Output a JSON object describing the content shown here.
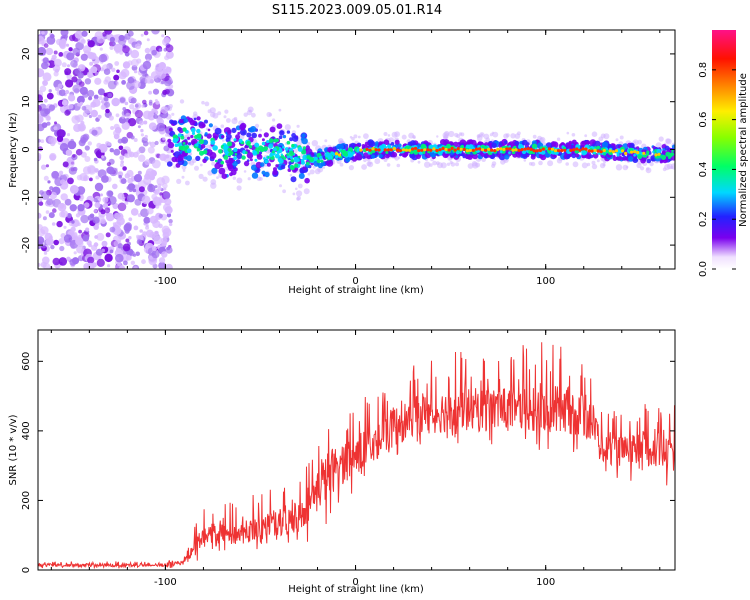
{
  "figure": {
    "title": "S115.2023.009.05.01.R14"
  },
  "chart_data": [
    {
      "type": "heatmap",
      "xlabel": "Height of straight line (km)",
      "ylabel": "Frequency (Hz)",
      "xlim": [
        -167,
        168
      ],
      "ylim": [
        -25,
        25
      ],
      "xticks": [
        -100,
        0,
        100
      ],
      "yticks": [
        -20,
        -10,
        0,
        10,
        20
      ],
      "colorbar": {
        "label": "Normalized spectral amplitude",
        "range": [
          0,
          0.96
        ],
        "ticks": [
          0.0,
          0.2,
          0.4,
          0.6,
          0.8
        ]
      },
      "ridge": {
        "x": [
          -100,
          -90,
          -80,
          -70,
          -60,
          -50,
          -40,
          -30,
          -20,
          -10,
          0,
          10,
          20,
          40,
          60,
          80,
          100,
          120,
          140,
          150,
          160,
          168
        ],
        "y": [
          0.5,
          2.0,
          1.5,
          -1.0,
          0.5,
          -1.0,
          0.0,
          -2.0,
          -2.0,
          -1.0,
          -0.5,
          0.0,
          0.0,
          0.0,
          0.0,
          0.0,
          0.0,
          0.0,
          -0.5,
          -0.8,
          -1.0,
          -1.0
        ]
      },
      "grid": false
    },
    {
      "type": "line",
      "xlabel": "Height of straight line (km)",
      "ylabel": "SNR (10 * v/v)",
      "xlim": [
        -167,
        168
      ],
      "ylim": [
        0,
        690
      ],
      "xticks": [
        -100,
        0,
        100
      ],
      "yticks": [
        0,
        200,
        400,
        600
      ],
      "color": "#ee3333",
      "envelope": {
        "x": [
          -167,
          -140,
          -100,
          -90,
          -85,
          -80,
          -70,
          -60,
          -50,
          -40,
          -30,
          -25,
          -20,
          -15,
          -10,
          0,
          10,
          20,
          30,
          40,
          50,
          60,
          70,
          80,
          90,
          100,
          110,
          120,
          125,
          130,
          140,
          150,
          160,
          168
        ],
        "min": [
          5,
          5,
          5,
          8,
          20,
          40,
          50,
          50,
          60,
          60,
          70,
          80,
          90,
          110,
          150,
          200,
          260,
          300,
          340,
          350,
          350,
          350,
          350,
          350,
          350,
          330,
          330,
          330,
          320,
          270,
          260,
          250,
          240,
          240
        ],
        "max": [
          25,
          25,
          25,
          40,
          120,
          180,
          190,
          200,
          230,
          240,
          260,
          320,
          380,
          420,
          450,
          480,
          520,
          560,
          600,
          620,
          640,
          640,
          640,
          640,
          650,
          660,
          640,
          610,
          590,
          460,
          460,
          480,
          490,
          500
        ],
        "mean": [
          14,
          14,
          14,
          22,
          60,
          95,
          100,
          105,
          120,
          130,
          150,
          190,
          230,
          270,
          300,
          330,
          370,
          410,
          440,
          450,
          460,
          460,
          460,
          460,
          460,
          450,
          460,
          440,
          420,
          350,
          340,
          340,
          340,
          340
        ]
      },
      "grid": false
    }
  ]
}
